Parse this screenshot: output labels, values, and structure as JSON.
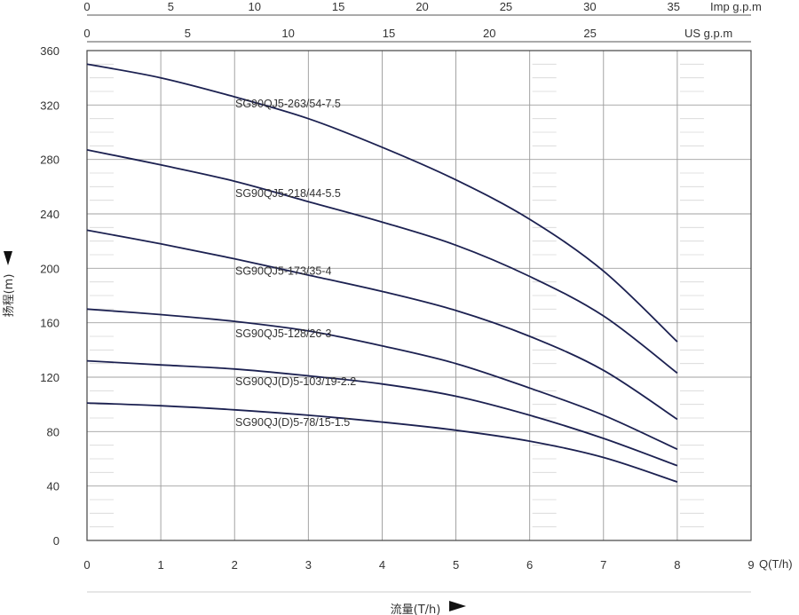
{
  "chart_data": {
    "type": "line",
    "xlabel": "流量(T/h)",
    "ylabel": "扬程(m)",
    "x_unit_label": "Q(T/h)",
    "xlim": [
      0,
      9
    ],
    "ylim": [
      0,
      360
    ],
    "x_ticks": [
      0,
      1,
      2,
      3,
      4,
      5,
      6,
      7,
      8,
      9
    ],
    "y_ticks": [
      0,
      40,
      80,
      120,
      160,
      200,
      240,
      280,
      320,
      360
    ],
    "secondary_axes": [
      {
        "label": "Imp g.p.m",
        "ticks": [
          0,
          5,
          10,
          15,
          20,
          25,
          30,
          35
        ]
      },
      {
        "label": "US g.p.m",
        "ticks": [
          0,
          5,
          10,
          15,
          20,
          25
        ]
      }
    ],
    "line_color": "#1c2151",
    "series": [
      {
        "name": "SG90QJ5-263/54-7.5",
        "x": [
          0,
          1,
          2,
          3,
          4,
          5,
          6,
          7,
          8
        ],
        "values": [
          350,
          340,
          326,
          310,
          289,
          265,
          236,
          198,
          146
        ]
      },
      {
        "name": "SG90QJ5-218/44-5.5",
        "x": [
          0,
          1,
          2,
          3,
          4,
          5,
          6,
          7,
          8
        ],
        "values": [
          287,
          276,
          264,
          249,
          234,
          217,
          194,
          165,
          123
        ]
      },
      {
        "name": "SG90QJ5-173/35-4",
        "x": [
          0,
          1,
          2,
          3,
          4,
          5,
          6,
          7,
          8
        ],
        "values": [
          228,
          218,
          207,
          195,
          183,
          169,
          150,
          125,
          89
        ]
      },
      {
        "name": "SG90QJ5-128/26-3",
        "x": [
          0,
          1,
          2,
          3,
          4,
          5,
          6,
          7,
          8
        ],
        "values": [
          170,
          166,
          161,
          154,
          143,
          130,
          112,
          92,
          67
        ]
      },
      {
        "name": "SG90QJ(D)5-103/19-2.2",
        "x": [
          0,
          1,
          2,
          3,
          4,
          5,
          6,
          7,
          8
        ],
        "values": [
          132,
          129,
          126,
          121,
          115,
          106,
          92,
          75,
          55
        ]
      },
      {
        "name": "SG90QJ(D)5-78/15-1.5",
        "x": [
          0,
          1,
          2,
          3,
          4,
          5,
          6,
          7,
          8
        ],
        "values": [
          101,
          99,
          96,
          92,
          87,
          81,
          73,
          61,
          43
        ]
      }
    ]
  }
}
